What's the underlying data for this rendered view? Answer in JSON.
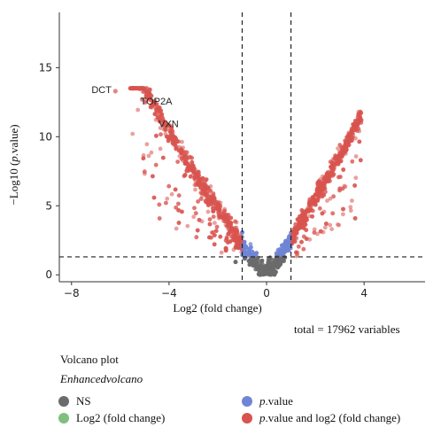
{
  "chart_data": {
    "type": "scatter",
    "title": "Volcano plot",
    "subtitle": "Enhancedvolcano",
    "caption": "total = 17962 variables",
    "xlabel": "Log2 (fold change)",
    "ylabel": "−Log10 (p.value)",
    "xlim": [
      -8.5,
      6.5
    ],
    "ylim": [
      -0.5,
      19
    ],
    "xticks": [
      -8,
      -4,
      0,
      4
    ],
    "yticks": [
      0,
      5,
      10,
      15
    ],
    "thresholds": {
      "log2fc": [
        -1,
        1
      ],
      "neg_log10_p": 1.3
    },
    "grid": false,
    "legend_position": "bottom",
    "series": [
      {
        "name": "NS",
        "color": "#6b6b6b"
      },
      {
        "name": "Log2 (fold change)",
        "color": "#7fbf7f"
      },
      {
        "name": "p.value",
        "color": "#6f86d6"
      },
      {
        "name": "p.value and log2 (fold change)",
        "color": "#d9534f"
      }
    ],
    "labeled_points": [
      {
        "gene": "DCT",
        "x": -6.2,
        "y": 13.3
      },
      {
        "gene": "TOP2A",
        "x": -5.1,
        "y": 12.7
      },
      {
        "gene": "VXN",
        "x": -4.5,
        "y": 11.6
      }
    ]
  },
  "legend": {
    "ns_label": "NS",
    "log2_label": "Log2 (fold change)",
    "pvalue_italic": "p",
    "pvalue_rest": ".value",
    "both_italic": "p",
    "both_rest": ".value and log2 (fold change)"
  }
}
